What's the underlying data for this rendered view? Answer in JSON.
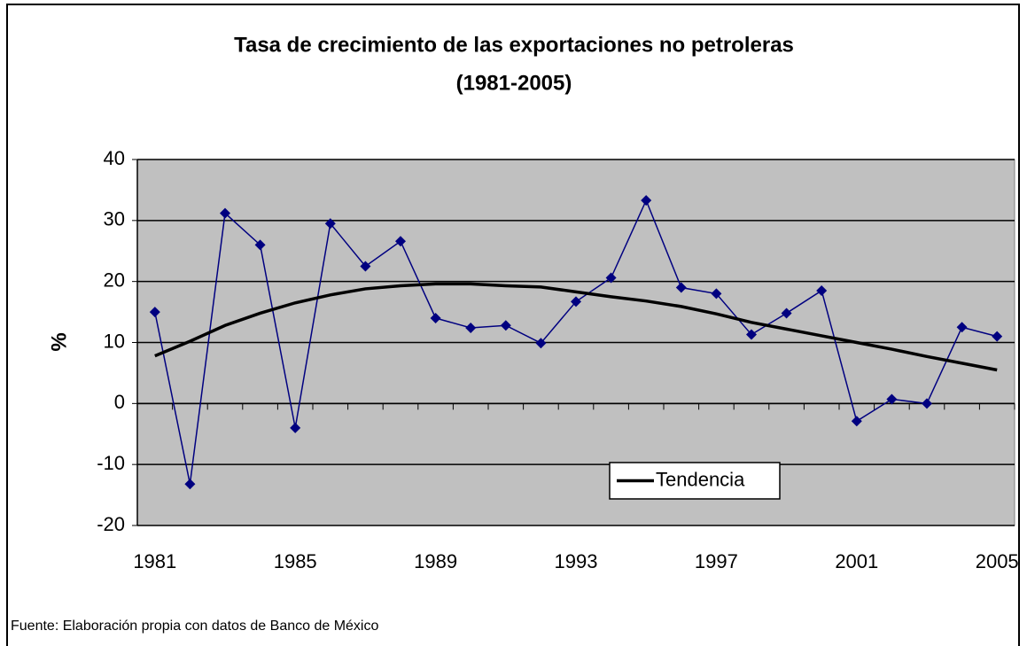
{
  "chart_data": {
    "type": "line",
    "title": "Tasa de crecimiento de las exportaciones no petroleras",
    "subtitle": "(1981-2005)",
    "y_label": "%",
    "source": "Fuente: Elaboración propia con datos de Banco de México",
    "categories": [
      "1981",
      null,
      null,
      null,
      "1985",
      null,
      null,
      null,
      "1989",
      null,
      null,
      null,
      "1993",
      null,
      null,
      null,
      "1997",
      null,
      null,
      null,
      "2001",
      null,
      null,
      null,
      "2005"
    ],
    "series": [
      {
        "color": "#000080",
        "marker": "diamond",
        "values": [
          15,
          -13.2,
          31.2,
          26,
          -4,
          29.5,
          22.5,
          26.6,
          14,
          12.4,
          12.8,
          9.9,
          16.7,
          20.6,
          33.3,
          19,
          18,
          11.3,
          14.8,
          18.5,
          -2.9,
          0.7,
          0,
          12.5,
          11
        ]
      },
      {
        "name": "Tendencia",
        "color": "#000000",
        "values": [
          7.8,
          10.2,
          12.8,
          14.8,
          16.5,
          17.8,
          18.8,
          19.3,
          19.6,
          19.6,
          19.3,
          19.1,
          18.3,
          17.5,
          16.8,
          15.9,
          14.7,
          13.3,
          12.2,
          11.1,
          10.0,
          8.9,
          7.7,
          6.6,
          5.5
        ]
      }
    ],
    "ylim": [
      -20,
      40
    ],
    "yticks": [
      -20,
      -10,
      0,
      10,
      20,
      30,
      40
    ],
    "grid": true,
    "plot_background": "#c0c0c0"
  }
}
